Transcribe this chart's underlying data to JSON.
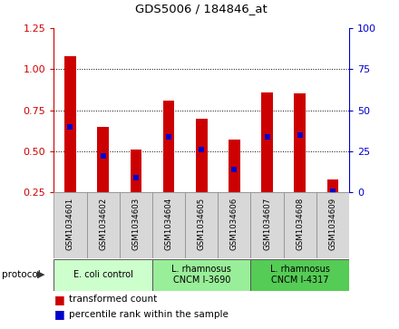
{
  "title": "GDS5006 / 184846_at",
  "samples": [
    "GSM1034601",
    "GSM1034602",
    "GSM1034603",
    "GSM1034604",
    "GSM1034605",
    "GSM1034606",
    "GSM1034607",
    "GSM1034608",
    "GSM1034609"
  ],
  "transformed_counts": [
    1.08,
    0.65,
    0.51,
    0.81,
    0.7,
    0.57,
    0.86,
    0.85,
    0.33
  ],
  "percentile_ranks": [
    0.65,
    0.47,
    0.34,
    0.59,
    0.51,
    0.39,
    0.59,
    0.6,
    0.26
  ],
  "bar_bottom": 0.25,
  "ylim": [
    0.25,
    1.25
  ],
  "ylim_right": [
    0,
    100
  ],
  "yticks_left": [
    0.25,
    0.5,
    0.75,
    1.0,
    1.25
  ],
  "yticks_right": [
    0,
    25,
    50,
    75,
    100
  ],
  "bar_color": "#cc0000",
  "dot_color": "#0000cc",
  "protocol_groups": [
    {
      "label": "E. coli control",
      "start": 0,
      "end": 3,
      "color": "#ccffcc"
    },
    {
      "label": "L. rhamnosus\nCNCM I-3690",
      "start": 3,
      "end": 6,
      "color": "#99ee99"
    },
    {
      "label": "L. rhamnosus\nCNCM I-4317",
      "start": 6,
      "end": 9,
      "color": "#55cc55"
    }
  ],
  "legend_red_label": "transformed count",
  "legend_blue_label": "percentile rank within the sample",
  "left_axis_color": "#cc0000",
  "right_axis_color": "#0000cc",
  "bar_width": 0.35,
  "dot_size": 4
}
